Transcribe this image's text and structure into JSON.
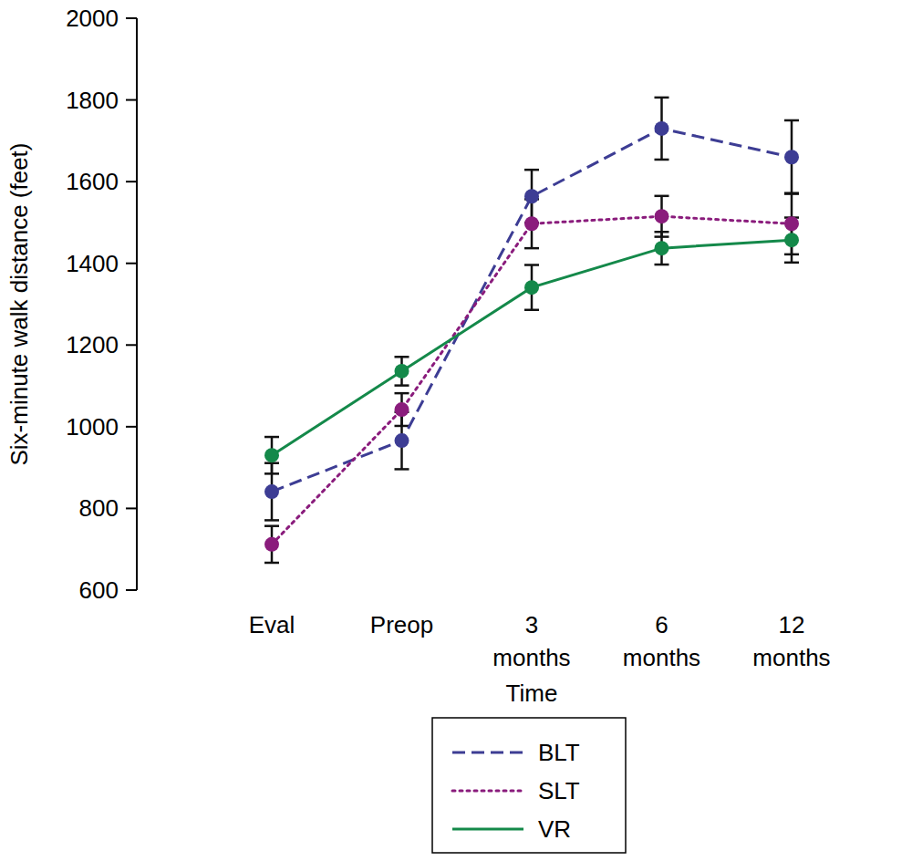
{
  "chart_data": {
    "type": "line",
    "x_label": "Time",
    "y_label": "Six-minute walk distance (feet)",
    "categories": [
      "Eval",
      "Preop",
      "3 months",
      "6 months",
      "12 months"
    ],
    "series": [
      {
        "name": "BLT",
        "color": "#3d3d94",
        "line_style": "dashed",
        "marker": "circle",
        "values": [
          841,
          966,
          1564,
          1730,
          1660
        ],
        "errors": [
          70,
          70,
          65,
          76,
          90
        ]
      },
      {
        "name": "SLT",
        "color": "#8a1c7c",
        "line_style": "dotted",
        "marker": "circle",
        "values": [
          712,
          1042,
          1497,
          1515,
          1497
        ],
        "errors": [
          45,
          40,
          60,
          50,
          75
        ]
      },
      {
        "name": "VR",
        "color": "#14894a",
        "line_style": "solid",
        "marker": "circle",
        "values": [
          930,
          1136,
          1341,
          1437,
          1457
        ],
        "errors": [
          45,
          35,
          55,
          40,
          55
        ]
      }
    ],
    "ylim": [
      600,
      2000
    ],
    "yticks": [
      600,
      800,
      1000,
      1200,
      1400,
      1600,
      1800,
      2000
    ],
    "grid": false,
    "legend": "bottom"
  }
}
